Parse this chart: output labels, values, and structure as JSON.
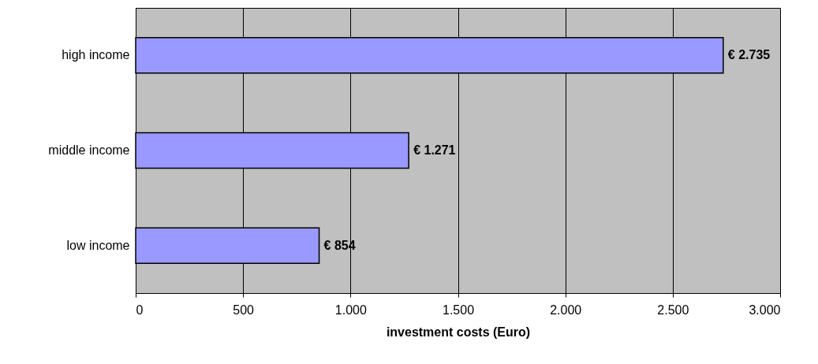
{
  "chart_data": {
    "type": "bar",
    "orientation": "horizontal",
    "xlabel": "investment costs (Euro)",
    "categories": [
      "high income",
      "middle income",
      "low income"
    ],
    "values": [
      2735,
      1271,
      854
    ],
    "value_labels": [
      "€ 2.735",
      "€ 1.271",
      "€ 854"
    ],
    "color": "#9999ff",
    "xlim": [
      0,
      3000
    ],
    "xticks": [
      0,
      500,
      {
        "value": 1000,
        "label": "1.000"
      },
      {
        "value": 1500,
        "label": "1.500"
      },
      {
        "value": 2000,
        "label": "2.000"
      },
      {
        "value": 2500,
        "label": "2.500"
      },
      {
        "value": 3000,
        "label": "3.000"
      }
    ],
    "grid": "x"
  }
}
